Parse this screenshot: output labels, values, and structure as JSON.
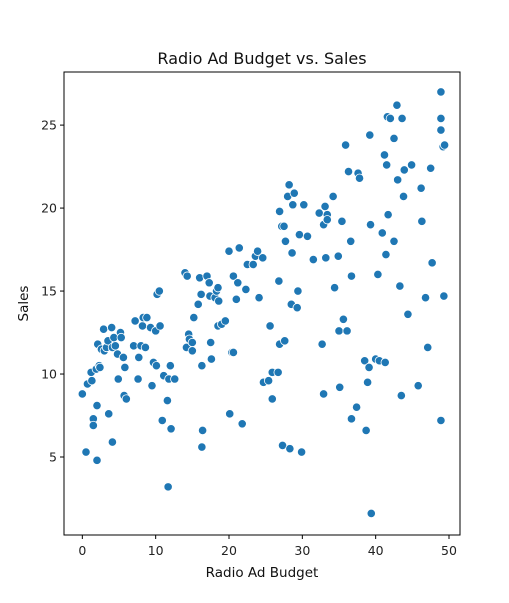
{
  "chart_data": {
    "type": "scatter",
    "title": "Radio Ad Budget vs. Sales",
    "xlabel": "Radio Ad Budget",
    "ylabel": "Sales",
    "xlim": [
      -2.5,
      51.5
    ],
    "ylim": [
      0.3,
      28.2
    ],
    "xticks": [
      0,
      10,
      20,
      30,
      40,
      50
    ],
    "yticks": [
      5,
      10,
      15,
      20,
      25
    ],
    "grid": false,
    "legend": "none",
    "marker_color": "#1f77b4",
    "marker_edge": "#ffffff",
    "points": [
      [
        0.0,
        8.8
      ],
      [
        0.5,
        5.3
      ],
      [
        0.7,
        9.4
      ],
      [
        1.2,
        10.1
      ],
      [
        1.3,
        9.6
      ],
      [
        1.5,
        7.3
      ],
      [
        1.5,
        6.9
      ],
      [
        1.9,
        10.3
      ],
      [
        2.0,
        8.1
      ],
      [
        2.0,
        4.8
      ],
      [
        2.1,
        11.8
      ],
      [
        2.3,
        10.5
      ],
      [
        2.4,
        10.4
      ],
      [
        2.6,
        11.5
      ],
      [
        2.9,
        12.7
      ],
      [
        3.0,
        11.4
      ],
      [
        3.3,
        11.6
      ],
      [
        3.5,
        12.0
      ],
      [
        3.6,
        7.6
      ],
      [
        4.0,
        12.8
      ],
      [
        4.1,
        11.6
      ],
      [
        4.1,
        5.9
      ],
      [
        4.3,
        12.2
      ],
      [
        4.5,
        11.7
      ],
      [
        4.8,
        11.2
      ],
      [
        4.9,
        9.7
      ],
      [
        5.2,
        12.5
      ],
      [
        5.3,
        12.2
      ],
      [
        5.6,
        11.0
      ],
      [
        5.7,
        8.7
      ],
      [
        5.8,
        10.4
      ],
      [
        6.0,
        8.5
      ],
      [
        7.0,
        11.7
      ],
      [
        7.2,
        13.2
      ],
      [
        7.6,
        9.7
      ],
      [
        7.7,
        11.0
      ],
      [
        8.0,
        11.7
      ],
      [
        8.2,
        12.9
      ],
      [
        8.3,
        13.4
      ],
      [
        8.6,
        11.6
      ],
      [
        8.8,
        13.4
      ],
      [
        9.3,
        12.8
      ],
      [
        9.5,
        9.3
      ],
      [
        9.7,
        10.7
      ],
      [
        10.0,
        12.6
      ],
      [
        10.1,
        10.5
      ],
      [
        10.2,
        14.8
      ],
      [
        10.5,
        15.0
      ],
      [
        10.6,
        12.9
      ],
      [
        10.9,
        7.2
      ],
      [
        11.1,
        9.9
      ],
      [
        11.6,
        8.4
      ],
      [
        11.7,
        3.2
      ],
      [
        11.8,
        9.7
      ],
      [
        12.0,
        10.5
      ],
      [
        12.1,
        6.7
      ],
      [
        12.6,
        9.7
      ],
      [
        14.0,
        16.1
      ],
      [
        14.2,
        11.6
      ],
      [
        14.3,
        15.9
      ],
      [
        14.5,
        12.4
      ],
      [
        14.6,
        12.1
      ],
      [
        15.0,
        11.9
      ],
      [
        15.0,
        11.4
      ],
      [
        15.2,
        13.4
      ],
      [
        15.8,
        14.2
      ],
      [
        16.0,
        15.8
      ],
      [
        16.2,
        14.8
      ],
      [
        16.3,
        10.5
      ],
      [
        16.4,
        6.6
      ],
      [
        16.3,
        5.6
      ],
      [
        17.0,
        15.9
      ],
      [
        17.3,
        15.5
      ],
      [
        17.4,
        14.7
      ],
      [
        17.5,
        11.9
      ],
      [
        17.6,
        10.9
      ],
      [
        18.1,
        14.6
      ],
      [
        18.3,
        15.0
      ],
      [
        18.5,
        15.2
      ],
      [
        18.6,
        14.4
      ],
      [
        18.5,
        12.9
      ],
      [
        19.0,
        13.0
      ],
      [
        19.5,
        13.2
      ],
      [
        20.0,
        17.4
      ],
      [
        20.1,
        7.6
      ],
      [
        20.4,
        11.3
      ],
      [
        20.6,
        11.3
      ],
      [
        20.6,
        15.9
      ],
      [
        21.0,
        14.5
      ],
      [
        21.2,
        15.5
      ],
      [
        21.4,
        17.6
      ],
      [
        21.8,
        7.0
      ],
      [
        22.3,
        15.1
      ],
      [
        22.5,
        16.6
      ],
      [
        23.3,
        16.6
      ],
      [
        23.6,
        17.1
      ],
      [
        23.9,
        17.4
      ],
      [
        24.1,
        14.6
      ],
      [
        24.6,
        17.0
      ],
      [
        24.7,
        9.5
      ],
      [
        25.4,
        9.6
      ],
      [
        25.6,
        12.9
      ],
      [
        25.9,
        8.5
      ],
      [
        25.9,
        10.1
      ],
      [
        26.7,
        10.1
      ],
      [
        26.9,
        11.8
      ],
      [
        26.8,
        15.6
      ],
      [
        26.9,
        19.8
      ],
      [
        27.2,
        18.9
      ],
      [
        27.3,
        5.7
      ],
      [
        27.5,
        18.9
      ],
      [
        27.6,
        12.0
      ],
      [
        27.7,
        18.0
      ],
      [
        28.0,
        20.7
      ],
      [
        28.2,
        21.4
      ],
      [
        28.3,
        5.5
      ],
      [
        28.5,
        14.2
      ],
      [
        28.6,
        17.3
      ],
      [
        28.7,
        20.2
      ],
      [
        28.9,
        20.9
      ],
      [
        29.3,
        14.0
      ],
      [
        29.4,
        15.0
      ],
      [
        29.6,
        18.4
      ],
      [
        29.9,
        5.3
      ],
      [
        30.2,
        20.2
      ],
      [
        30.7,
        18.3
      ],
      [
        31.5,
        16.9
      ],
      [
        32.3,
        19.7
      ],
      [
        32.7,
        11.8
      ],
      [
        32.9,
        8.8
      ],
      [
        32.9,
        19.0
      ],
      [
        33.1,
        20.1
      ],
      [
        33.2,
        17.0
      ],
      [
        33.4,
        19.6
      ],
      [
        33.4,
        19.3
      ],
      [
        34.2,
        20.7
      ],
      [
        34.4,
        15.2
      ],
      [
        34.9,
        17.1
      ],
      [
        35.0,
        12.6
      ],
      [
        35.1,
        9.2
      ],
      [
        35.4,
        19.2
      ],
      [
        35.6,
        13.3
      ],
      [
        35.9,
        23.8
      ],
      [
        36.1,
        12.6
      ],
      [
        36.3,
        22.2
      ],
      [
        36.6,
        18.0
      ],
      [
        36.7,
        15.9
      ],
      [
        36.7,
        7.3
      ],
      [
        37.4,
        8.0
      ],
      [
        37.6,
        22.1
      ],
      [
        37.8,
        21.8
      ],
      [
        38.5,
        10.8
      ],
      [
        38.7,
        6.6
      ],
      [
        38.9,
        9.5
      ],
      [
        39.1,
        10.4
      ],
      [
        39.2,
        24.4
      ],
      [
        39.3,
        19.0
      ],
      [
        39.4,
        1.6
      ],
      [
        40.0,
        10.9
      ],
      [
        40.3,
        16.0
      ],
      [
        40.5,
        10.8
      ],
      [
        40.9,
        18.5
      ],
      [
        41.2,
        23.2
      ],
      [
        41.3,
        10.7
      ],
      [
        41.4,
        17.2
      ],
      [
        41.5,
        22.6
      ],
      [
        41.6,
        25.5
      ],
      [
        41.7,
        19.6
      ],
      [
        42.0,
        25.4
      ],
      [
        42.5,
        24.2
      ],
      [
        42.5,
        18.0
      ],
      [
        42.9,
        26.2
      ],
      [
        43.0,
        21.7
      ],
      [
        43.3,
        15.3
      ],
      [
        43.5,
        8.7
      ],
      [
        43.6,
        25.4
      ],
      [
        43.8,
        20.7
      ],
      [
        43.9,
        22.3
      ],
      [
        44.4,
        13.6
      ],
      [
        44.9,
        22.6
      ],
      [
        45.8,
        9.3
      ],
      [
        46.2,
        21.2
      ],
      [
        46.3,
        19.2
      ],
      [
        46.8,
        14.6
      ],
      [
        47.1,
        11.6
      ],
      [
        47.5,
        22.4
      ],
      [
        47.7,
        16.7
      ],
      [
        48.9,
        27.0
      ],
      [
        48.9,
        25.4
      ],
      [
        48.9,
        24.7
      ],
      [
        48.9,
        7.2
      ],
      [
        49.2,
        23.7
      ],
      [
        49.4,
        23.8
      ],
      [
        49.3,
        14.7
      ]
    ]
  }
}
